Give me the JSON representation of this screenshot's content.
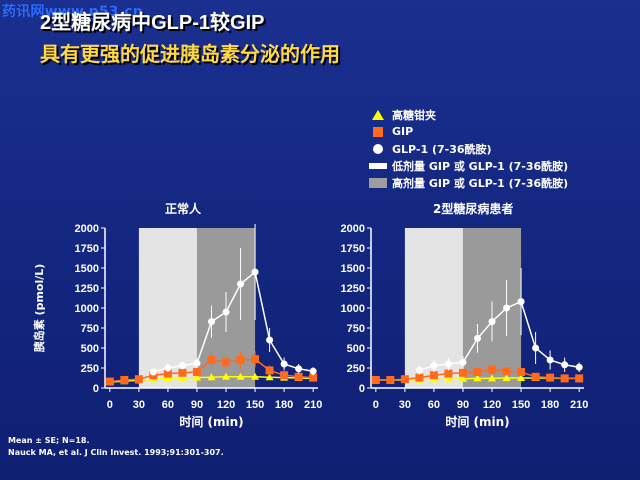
{
  "watermark": "药讯网www.p53.cn",
  "title": {
    "line1": "2型糖尿病中GLP-1较GIP",
    "line2": "具有更强的促进胰岛素分泌的作用"
  },
  "legend": [
    {
      "symbol": "triangle",
      "color": "#ffff00",
      "label": "高糖钳夹"
    },
    {
      "symbol": "square",
      "color": "#ff6a1e",
      "label": "GIP"
    },
    {
      "symbol": "circle",
      "color": "#ffffff",
      "label": "GLP-1 (7-36酰胺)"
    },
    {
      "symbol": "bar-light",
      "color": "#e9e9e9",
      "label": "低剂量 GIP 或 GLP-1 (7-36酰胺)"
    },
    {
      "symbol": "bar-dark",
      "color": "#9d9d9d",
      "label": "高剂量 GIP 或 GLP-1 (7-36酰胺)"
    }
  ],
  "footer": {
    "line1": "Mean ± SE; N=18.",
    "line2": "Nauck MA, et al. J Clin Invest. 1993;91:301-307."
  },
  "chart_data": [
    {
      "type": "line",
      "title": "正常人",
      "xlabel": "时间 (min)",
      "ylabel": "胰岛素 (pmol/L)",
      "xlim": [
        -5,
        215
      ],
      "ylim": [
        0,
        2000
      ],
      "xticks": [
        0,
        30,
        60,
        90,
        120,
        150,
        180,
        210
      ],
      "yticks": [
        0,
        250,
        500,
        750,
        1000,
        1250,
        1500,
        1750,
        2000
      ],
      "low_dose_interval": [
        30,
        90
      ],
      "high_dose_interval": [
        90,
        150
      ],
      "series": [
        {
          "name": "高糖钳夹",
          "marker": "triangle",
          "color": "#ffff00",
          "x": [
            0,
            15,
            30,
            45,
            60,
            75,
            90,
            105,
            120,
            135,
            150,
            165,
            180,
            195,
            210
          ],
          "y": [
            75,
            85,
            95,
            110,
            120,
            125,
            130,
            135,
            140,
            140,
            140,
            135,
            130,
            125,
            120
          ]
        },
        {
          "name": "GIP",
          "marker": "square",
          "color": "#ff6a1e",
          "x": [
            0,
            15,
            30,
            45,
            60,
            75,
            90,
            105,
            120,
            135,
            150,
            165,
            180,
            195,
            210
          ],
          "y": [
            80,
            100,
            110,
            160,
            180,
            190,
            200,
            350,
            320,
            350,
            360,
            220,
            160,
            140,
            130
          ],
          "err": [
            20,
            20,
            20,
            30,
            30,
            30,
            40,
            110,
            90,
            110,
            100,
            60,
            40,
            30,
            30
          ]
        },
        {
          "name": "GLP-1 (7-36酰胺)",
          "marker": "circle",
          "color": "#ffffff",
          "x": [
            45,
            60,
            75,
            90,
            105,
            120,
            135,
            150,
            165,
            180,
            195,
            210
          ],
          "y": [
            200,
            250,
            280,
            310,
            830,
            950,
            1300,
            1450,
            600,
            300,
            240,
            210
          ],
          "err": [
            40,
            50,
            50,
            60,
            200,
            250,
            450,
            600,
            150,
            80,
            60,
            50
          ]
        }
      ]
    },
    {
      "type": "line",
      "title": "2型糖尿病患者",
      "xlabel": "时间 (min)",
      "ylabel": "",
      "xlim": [
        -5,
        215
      ],
      "ylim": [
        0,
        2000
      ],
      "xticks": [
        0,
        30,
        60,
        90,
        120,
        150,
        180,
        210
      ],
      "yticks": [
        0,
        250,
        500,
        750,
        1000,
        1250,
        1500,
        1750,
        2000
      ],
      "low_dose_interval": [
        30,
        90
      ],
      "high_dose_interval": [
        90,
        150
      ],
      "series": [
        {
          "name": "高糖钳夹",
          "marker": "triangle",
          "color": "#ffff00",
          "x": [
            0,
            15,
            30,
            45,
            60,
            75,
            90,
            105,
            120,
            135,
            150,
            165,
            180,
            195,
            210
          ],
          "y": [
            100,
            100,
            100,
            105,
            110,
            110,
            115,
            120,
            120,
            125,
            125,
            125,
            125,
            120,
            120
          ]
        },
        {
          "name": "GIP",
          "marker": "square",
          "color": "#ff6a1e",
          "x": [
            0,
            15,
            30,
            45,
            60,
            75,
            90,
            105,
            120,
            135,
            150,
            165,
            180,
            195,
            210
          ],
          "y": [
            100,
            100,
            110,
            130,
            160,
            180,
            190,
            200,
            230,
            210,
            200,
            140,
            130,
            120,
            120
          ],
          "err": [
            20,
            20,
            20,
            30,
            30,
            40,
            40,
            50,
            50,
            50,
            50,
            30,
            30,
            30,
            30
          ]
        },
        {
          "name": "GLP-1 (7-36酰胺)",
          "marker": "circle",
          "color": "#ffffff",
          "x": [
            45,
            60,
            75,
            90,
            105,
            120,
            135,
            150,
            165,
            180,
            195,
            210
          ],
          "y": [
            220,
            280,
            300,
            320,
            620,
            830,
            1000,
            1080,
            500,
            350,
            290,
            260
          ],
          "err": [
            60,
            80,
            80,
            80,
            180,
            250,
            350,
            420,
            200,
            120,
            90,
            60
          ]
        }
      ]
    }
  ]
}
